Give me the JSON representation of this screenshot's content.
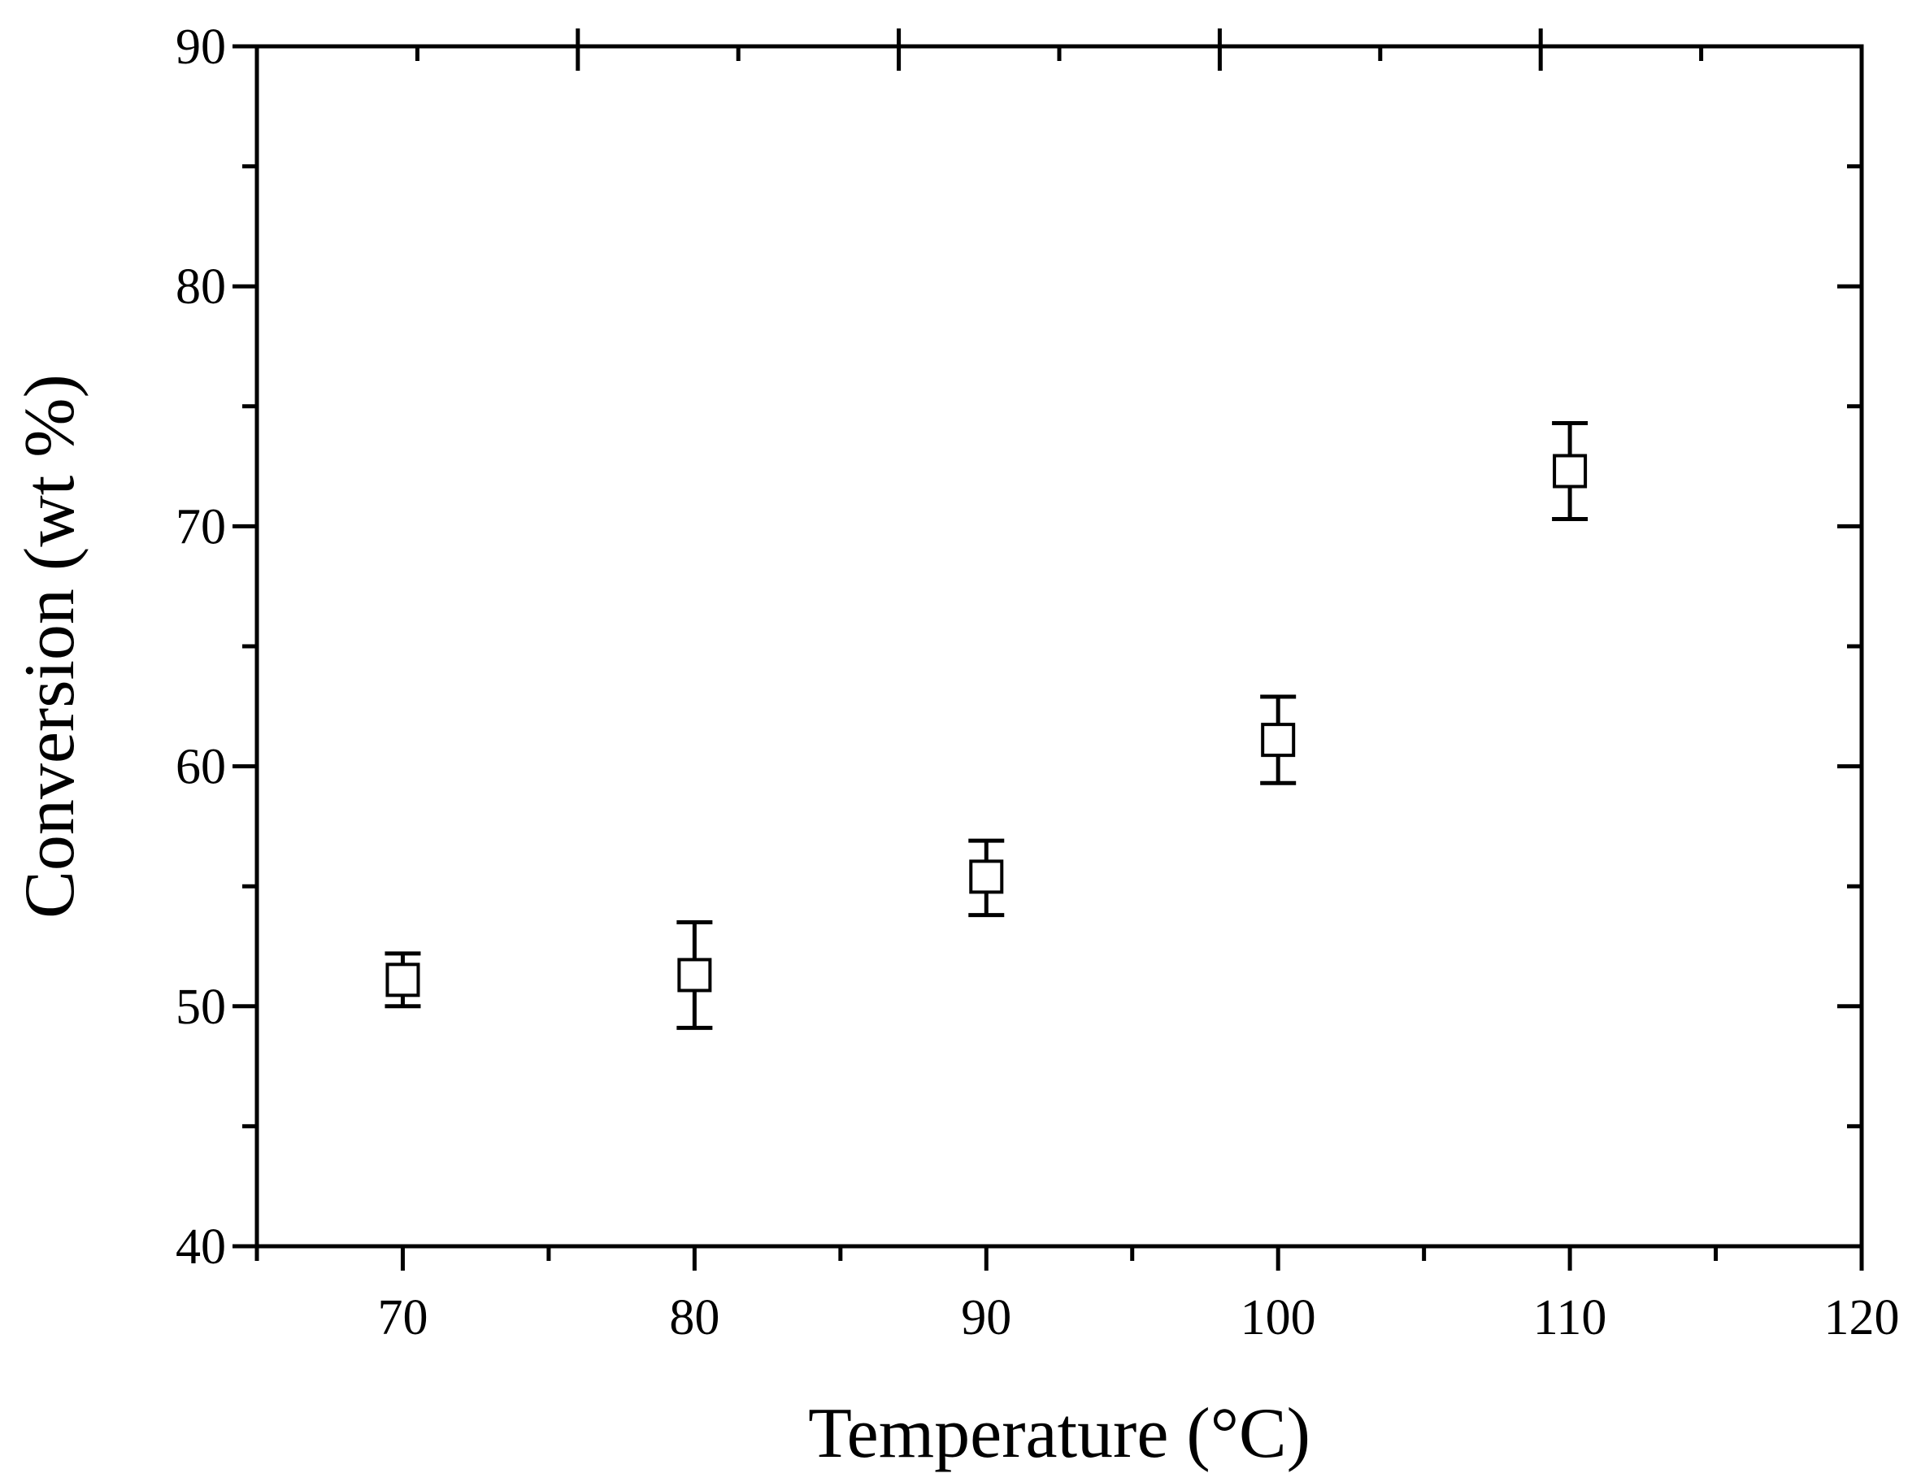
{
  "chart_data": {
    "type": "scatter",
    "title": "",
    "xlabel": "Temperature (°C)",
    "ylabel": "Conversion (wt %)",
    "xlim": [
      65,
      120
    ],
    "ylim": [
      40,
      90
    ],
    "x_ticks": [
      70,
      80,
      90,
      100,
      110,
      120
    ],
    "y_ticks": [
      40,
      50,
      60,
      70,
      80,
      90
    ],
    "x_minor_step": 5,
    "y_minor_step": 5,
    "top_axis_major_ticks": [
      76,
      87,
      98,
      109
    ],
    "top_axis_minor_step": 5.5,
    "marker": "open-square",
    "error_bars": true,
    "grid": false,
    "legend": "none",
    "series": [
      {
        "x": [
          70,
          80,
          90,
          100,
          110
        ],
        "y": [
          51.1,
          51.3,
          55.4,
          61.1,
          72.3
        ],
        "y_error_low": [
          50.0,
          49.1,
          53.8,
          59.3,
          70.3
        ],
        "y_error_high": [
          52.2,
          53.5,
          56.9,
          62.9,
          74.3
        ]
      }
    ],
    "colors": {
      "axis": "#000000",
      "marker": "#000000",
      "background": "#ffffff"
    }
  }
}
